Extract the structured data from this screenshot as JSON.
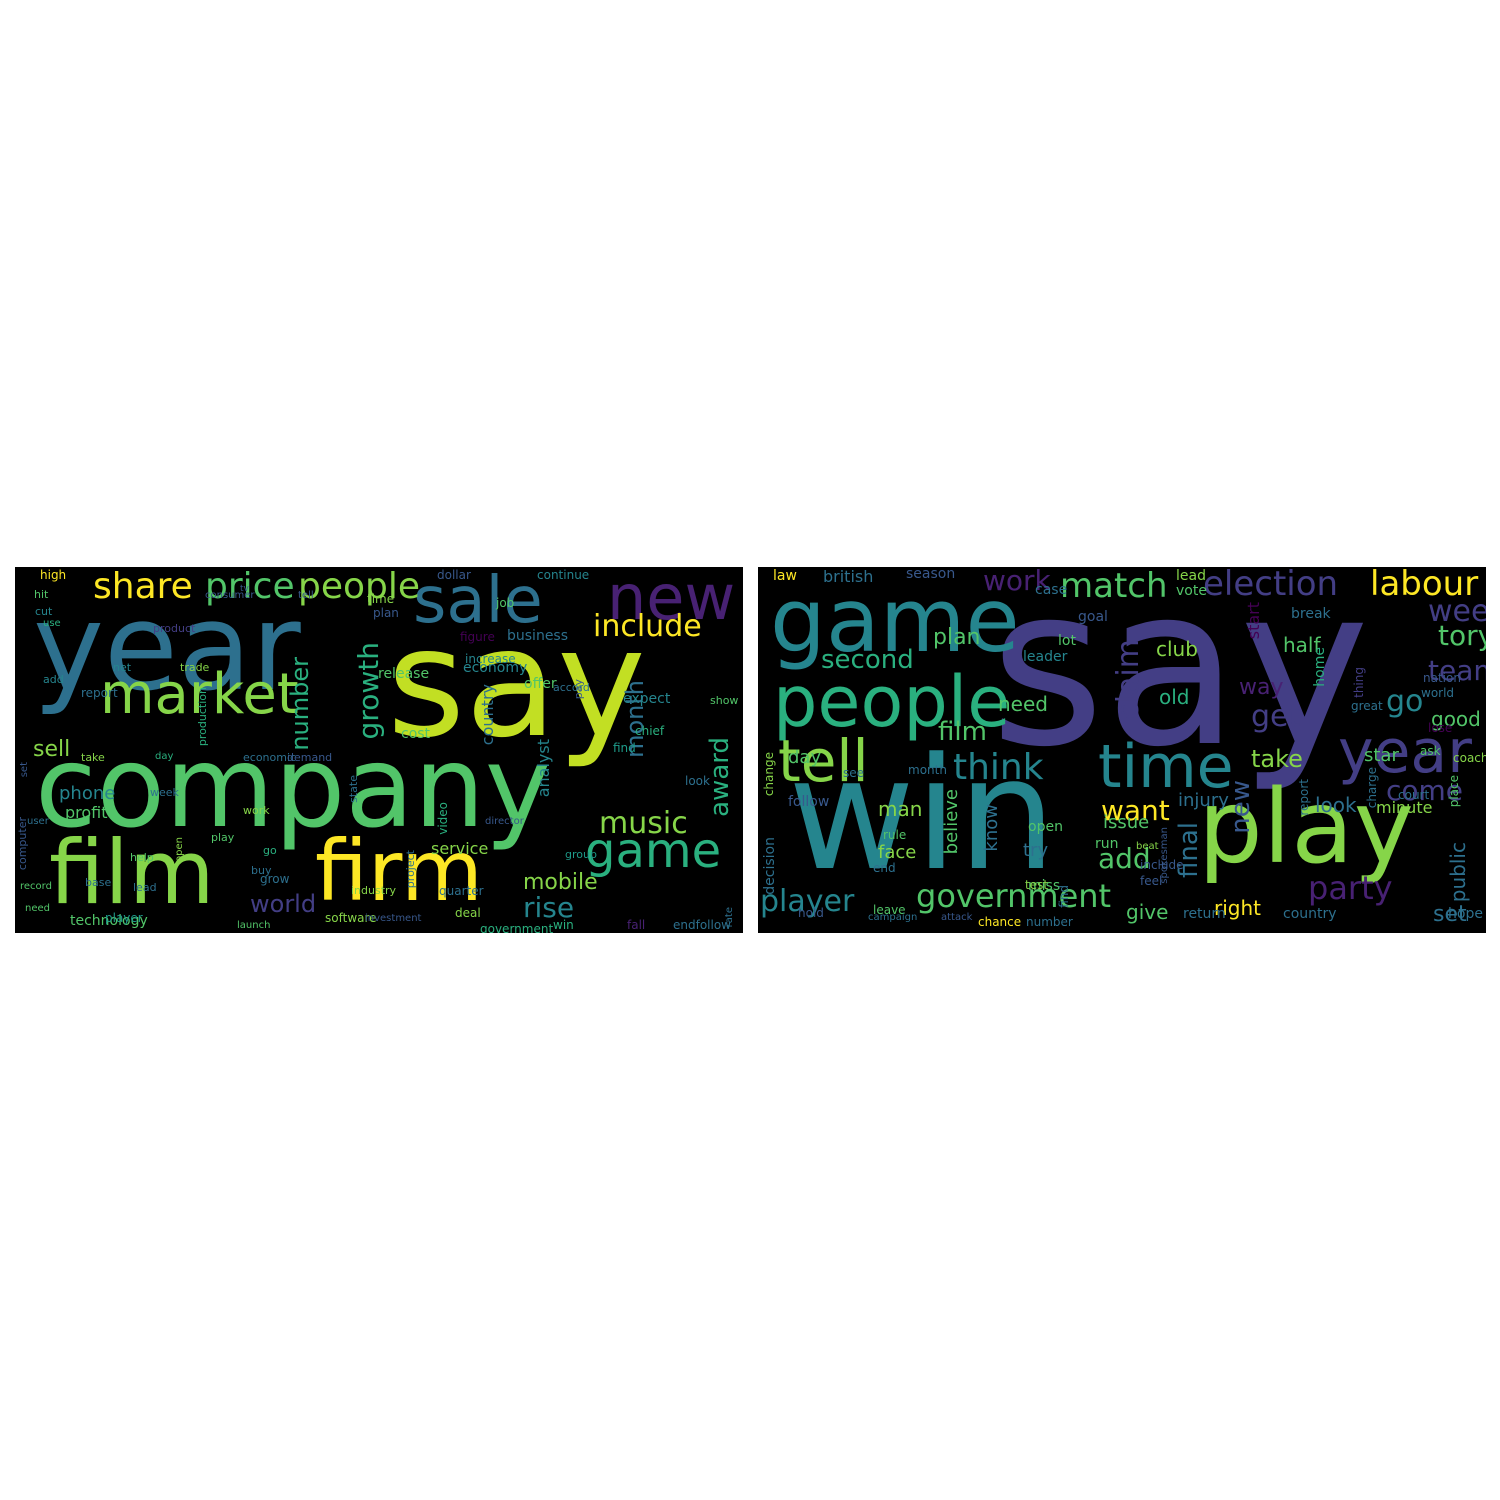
{
  "palette": {
    "background": "#000000",
    "yellow": "#fde725",
    "lime": "#c2df23",
    "green": "#86d549",
    "emerald": "#52c569",
    "sea": "#2ab07f",
    "teal": "#1e9b8a",
    "cyan": "#25858e",
    "steel": "#2d708e",
    "blue": "#38588c",
    "indigo": "#433e85",
    "purple": "#482173",
    "dark": "#440154"
  },
  "clouds": [
    {
      "name": "left",
      "words": [
        {
          "text": "say",
          "color": "lime"
        },
        {
          "text": "year",
          "color": "steel"
        },
        {
          "text": "company",
          "color": "emerald"
        },
        {
          "text": "film",
          "color": "green"
        },
        {
          "text": "firm",
          "color": "yellow"
        },
        {
          "text": "sale",
          "color": "steel"
        },
        {
          "text": "new",
          "color": "purple"
        },
        {
          "text": "market",
          "color": "green"
        },
        {
          "text": "game",
          "color": "sea"
        },
        {
          "text": "share",
          "color": "yellow"
        },
        {
          "text": "price",
          "color": "emerald"
        },
        {
          "text": "people",
          "color": "green"
        },
        {
          "text": "include",
          "color": "yellow"
        },
        {
          "text": "growth",
          "color": "sea"
        },
        {
          "text": "music",
          "color": "green"
        },
        {
          "text": "rise",
          "color": "cyan"
        },
        {
          "text": "mobile",
          "color": "green"
        },
        {
          "text": "world",
          "color": "indigo"
        },
        {
          "text": "sell",
          "color": "green"
        },
        {
          "text": "number",
          "color": "sea"
        },
        {
          "text": "month",
          "color": "steel"
        },
        {
          "text": "award",
          "color": "sea"
        },
        {
          "text": "phone",
          "color": "cyan"
        },
        {
          "text": "profit",
          "color": "emerald"
        },
        {
          "text": "service",
          "color": "green"
        },
        {
          "text": "technology",
          "color": "emerald"
        },
        {
          "text": "economy",
          "color": "cyan"
        },
        {
          "text": "country",
          "color": "steel"
        },
        {
          "text": "analyst",
          "color": "cyan"
        },
        {
          "text": "offer",
          "color": "emerald"
        },
        {
          "text": "cost",
          "color": "emerald"
        },
        {
          "text": "release",
          "color": "emerald"
        },
        {
          "text": "expect",
          "color": "cyan"
        },
        {
          "text": "business",
          "color": "steel"
        },
        {
          "text": "figure",
          "color": "dark"
        },
        {
          "text": "continue",
          "color": "cyan"
        },
        {
          "text": "dollar",
          "color": "blue"
        },
        {
          "text": "high",
          "color": "yellow"
        },
        {
          "text": "hit",
          "color": "emerald"
        },
        {
          "text": "cut",
          "color": "cyan"
        },
        {
          "text": "use",
          "color": "sea"
        },
        {
          "text": "consumer",
          "color": "blue"
        },
        {
          "text": "tell",
          "color": "blue"
        },
        {
          "text": "time",
          "color": "green"
        },
        {
          "text": "plan",
          "color": "blue"
        },
        {
          "text": "job",
          "color": "emerald"
        },
        {
          "text": "product",
          "color": "indigo"
        },
        {
          "text": "net",
          "color": "cyan"
        },
        {
          "text": "report",
          "color": "steel"
        },
        {
          "text": "add",
          "color": "cyan"
        },
        {
          "text": "trade",
          "color": "green"
        },
        {
          "text": "production",
          "color": "sea"
        },
        {
          "text": "increase",
          "color": "cyan"
        },
        {
          "text": "pay",
          "color": "blue"
        },
        {
          "text": "accord",
          "color": "steel"
        },
        {
          "text": "show",
          "color": "emerald"
        },
        {
          "text": "chief",
          "color": "sea"
        },
        {
          "text": "find",
          "color": "teal"
        },
        {
          "text": "look",
          "color": "steel"
        },
        {
          "text": "take",
          "color": "green"
        },
        {
          "text": "day",
          "color": "sea"
        },
        {
          "text": "economic",
          "color": "steel"
        },
        {
          "text": "demand",
          "color": "blue"
        },
        {
          "text": "state",
          "color": "steel"
        },
        {
          "text": "video",
          "color": "sea"
        },
        {
          "text": "director",
          "color": "blue"
        },
        {
          "text": "set",
          "color": "blue"
        },
        {
          "text": "user",
          "color": "steel"
        },
        {
          "text": "computer",
          "color": "blue"
        },
        {
          "text": "week",
          "color": "steel"
        },
        {
          "text": "work",
          "color": "green"
        },
        {
          "text": "play",
          "color": "emerald"
        },
        {
          "text": "go",
          "color": "sea"
        },
        {
          "text": "buy",
          "color": "steel"
        },
        {
          "text": "help",
          "color": "emerald"
        },
        {
          "text": "lead",
          "color": "steel"
        },
        {
          "text": "base",
          "color": "steel"
        },
        {
          "text": "open",
          "color": "green"
        },
        {
          "text": "grow",
          "color": "steel"
        },
        {
          "text": "project",
          "color": "steel"
        },
        {
          "text": "industry",
          "color": "green"
        },
        {
          "text": "quarter",
          "color": "steel"
        },
        {
          "text": "group",
          "color": "teal"
        },
        {
          "text": "need",
          "color": "emerald"
        },
        {
          "text": "player",
          "color": "teal"
        },
        {
          "text": "launch",
          "color": "emerald"
        },
        {
          "text": "software",
          "color": "green"
        },
        {
          "text": "investment",
          "color": "blue"
        },
        {
          "text": "deal",
          "color": "green"
        },
        {
          "text": "government",
          "color": "sea"
        },
        {
          "text": "win",
          "color": "sea"
        },
        {
          "text": "fall",
          "color": "purple"
        },
        {
          "text": "endfollow",
          "color": "steel"
        },
        {
          "text": "rate",
          "color": "steel"
        },
        {
          "text": "record",
          "color": "emerald"
        },
        {
          "text": "tv",
          "color": "blue"
        },
        {
          "text": "see",
          "color": "emerald"
        },
        {
          "text": "financial",
          "color": "blue"
        }
      ]
    },
    {
      "name": "right",
      "words": [
        {
          "text": "say",
          "color": "indigo"
        },
        {
          "text": "win",
          "color": "cyan"
        },
        {
          "text": "game",
          "color": "cyan"
        },
        {
          "text": "play",
          "color": "green"
        },
        {
          "text": "people",
          "color": "sea"
        },
        {
          "text": "tell",
          "color": "green"
        },
        {
          "text": "time",
          "color": "cyan"
        },
        {
          "text": "year",
          "color": "indigo"
        },
        {
          "text": "election",
          "color": "indigo"
        },
        {
          "text": "labour",
          "color": "yellow"
        },
        {
          "text": "match",
          "color": "emerald"
        },
        {
          "text": "think",
          "color": "cyan"
        },
        {
          "text": "government",
          "color": "emerald"
        },
        {
          "text": "player",
          "color": "cyan"
        },
        {
          "text": "party",
          "color": "purple"
        },
        {
          "text": "week",
          "color": "indigo"
        },
        {
          "text": "team",
          "color": "indigo"
        },
        {
          "text": "tory",
          "color": "emerald"
        },
        {
          "text": "second",
          "color": "sea"
        },
        {
          "text": "claim",
          "color": "indigo"
        },
        {
          "text": "get",
          "color": "indigo"
        },
        {
          "text": "go",
          "color": "cyan"
        },
        {
          "text": "come",
          "color": "indigo"
        },
        {
          "text": "film",
          "color": "emerald"
        },
        {
          "text": "want",
          "color": "yellow"
        },
        {
          "text": "add",
          "color": "emerald"
        },
        {
          "text": "final",
          "color": "steel"
        },
        {
          "text": "new",
          "color": "blue"
        },
        {
          "text": "work",
          "color": "purple"
        },
        {
          "text": "club",
          "color": "green"
        },
        {
          "text": "half",
          "color": "emerald"
        },
        {
          "text": "take",
          "color": "green"
        },
        {
          "text": "old",
          "color": "sea"
        },
        {
          "text": "plan",
          "color": "emerald"
        },
        {
          "text": "need",
          "color": "emerald"
        },
        {
          "text": "day",
          "color": "emerald"
        },
        {
          "text": "man",
          "color": "green"
        },
        {
          "text": "know",
          "color": "steel"
        },
        {
          "text": "believe",
          "color": "emerald"
        },
        {
          "text": "face",
          "color": "green"
        },
        {
          "text": "try",
          "color": "steel"
        },
        {
          "text": "issue",
          "color": "emerald"
        },
        {
          "text": "injury",
          "color": "steel"
        },
        {
          "text": "look",
          "color": "steel"
        },
        {
          "text": "right",
          "color": "yellow"
        },
        {
          "text": "give",
          "color": "emerald"
        },
        {
          "text": "set",
          "color": "steel"
        },
        {
          "text": "public",
          "color": "steel"
        },
        {
          "text": "good",
          "color": "emerald"
        },
        {
          "text": "star",
          "color": "emerald"
        },
        {
          "text": "way",
          "color": "purple"
        },
        {
          "text": "start",
          "color": "dark"
        },
        {
          "text": "minute",
          "color": "green"
        },
        {
          "text": "british",
          "color": "steel"
        },
        {
          "text": "season",
          "color": "blue"
        },
        {
          "text": "law",
          "color": "yellow"
        },
        {
          "text": "case",
          "color": "steel"
        },
        {
          "text": "lead",
          "color": "green"
        },
        {
          "text": "vote",
          "color": "emerald"
        },
        {
          "text": "goal",
          "color": "blue"
        },
        {
          "text": "break",
          "color": "steel"
        },
        {
          "text": "leader",
          "color": "cyan"
        },
        {
          "text": "lot",
          "color": "emerald"
        },
        {
          "text": "home",
          "color": "sea"
        },
        {
          "text": "great",
          "color": "steel"
        },
        {
          "text": "thing",
          "color": "indigo"
        },
        {
          "text": "nation",
          "color": "blue"
        },
        {
          "text": "world",
          "color": "steel"
        },
        {
          "text": "lose",
          "color": "dark"
        },
        {
          "text": "coach",
          "color": "green"
        },
        {
          "text": "place",
          "color": "emerald"
        },
        {
          "text": "charge",
          "color": "steel"
        },
        {
          "text": "report",
          "color": "steel"
        },
        {
          "text": "hope",
          "color": "steel"
        },
        {
          "text": "country",
          "color": "steel"
        },
        {
          "text": "return",
          "color": "steel"
        },
        {
          "text": "court",
          "color": "steel"
        },
        {
          "text": "ask",
          "color": "emerald"
        },
        {
          "text": "include",
          "color": "blue"
        },
        {
          "text": "beat",
          "color": "green"
        },
        {
          "text": "feel",
          "color": "blue"
        },
        {
          "text": "run",
          "color": "emerald"
        },
        {
          "text": "miss",
          "color": "emerald"
        },
        {
          "text": "open",
          "color": "emerald"
        },
        {
          "text": "test",
          "color": "green"
        },
        {
          "text": "find",
          "color": "steel"
        },
        {
          "text": "month",
          "color": "steel"
        },
        {
          "text": "see",
          "color": "steel"
        },
        {
          "text": "rule",
          "color": "emerald"
        },
        {
          "text": "follow",
          "color": "blue"
        },
        {
          "text": "end",
          "color": "steel"
        },
        {
          "text": "leave",
          "color": "emerald"
        },
        {
          "text": "hold",
          "color": "blue"
        },
        {
          "text": "campaign",
          "color": "steel"
        },
        {
          "text": "attack",
          "color": "blue"
        },
        {
          "text": "chance",
          "color": "yellow"
        },
        {
          "text": "number",
          "color": "steel"
        },
        {
          "text": "decision",
          "color": "steel"
        },
        {
          "text": "change",
          "color": "green"
        },
        {
          "text": "spokesman",
          "color": "blue"
        }
      ]
    }
  ]
}
